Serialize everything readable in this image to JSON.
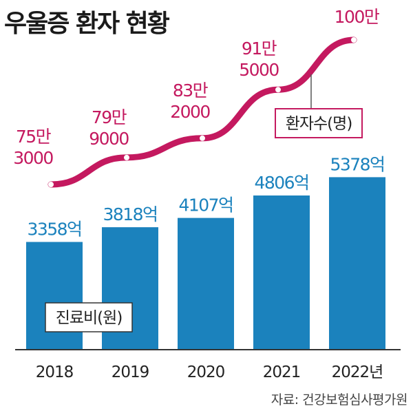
{
  "title": "우울증 환자 현황",
  "source": "자료: 건강보험심사평가원",
  "colors": {
    "bar": "#1b82bd",
    "line": "#c4195f",
    "text": "#1a1a1a"
  },
  "chart_data": {
    "type": "bar",
    "title": "우울증 환자 현황",
    "categories": [
      "2018",
      "2019",
      "2020",
      "2021",
      "2022년"
    ],
    "series": [
      {
        "name": "진료비(원)",
        "type": "bar",
        "values": [
          3358,
          3818,
          4107,
          4806,
          5378
        ],
        "labels": [
          "3358억",
          "3818억",
          "4107억",
          "4806억",
          "5378억"
        ]
      },
      {
        "name": "환자수(명)",
        "type": "line",
        "values": [
          753000,
          799000,
          832000,
          915000,
          1000000
        ],
        "labels": [
          [
            "75만",
            "3000"
          ],
          [
            "79만",
            "9000"
          ],
          [
            "83만",
            "2000"
          ],
          [
            "91만",
            "5000"
          ],
          [
            "100만"
          ]
        ]
      }
    ]
  }
}
